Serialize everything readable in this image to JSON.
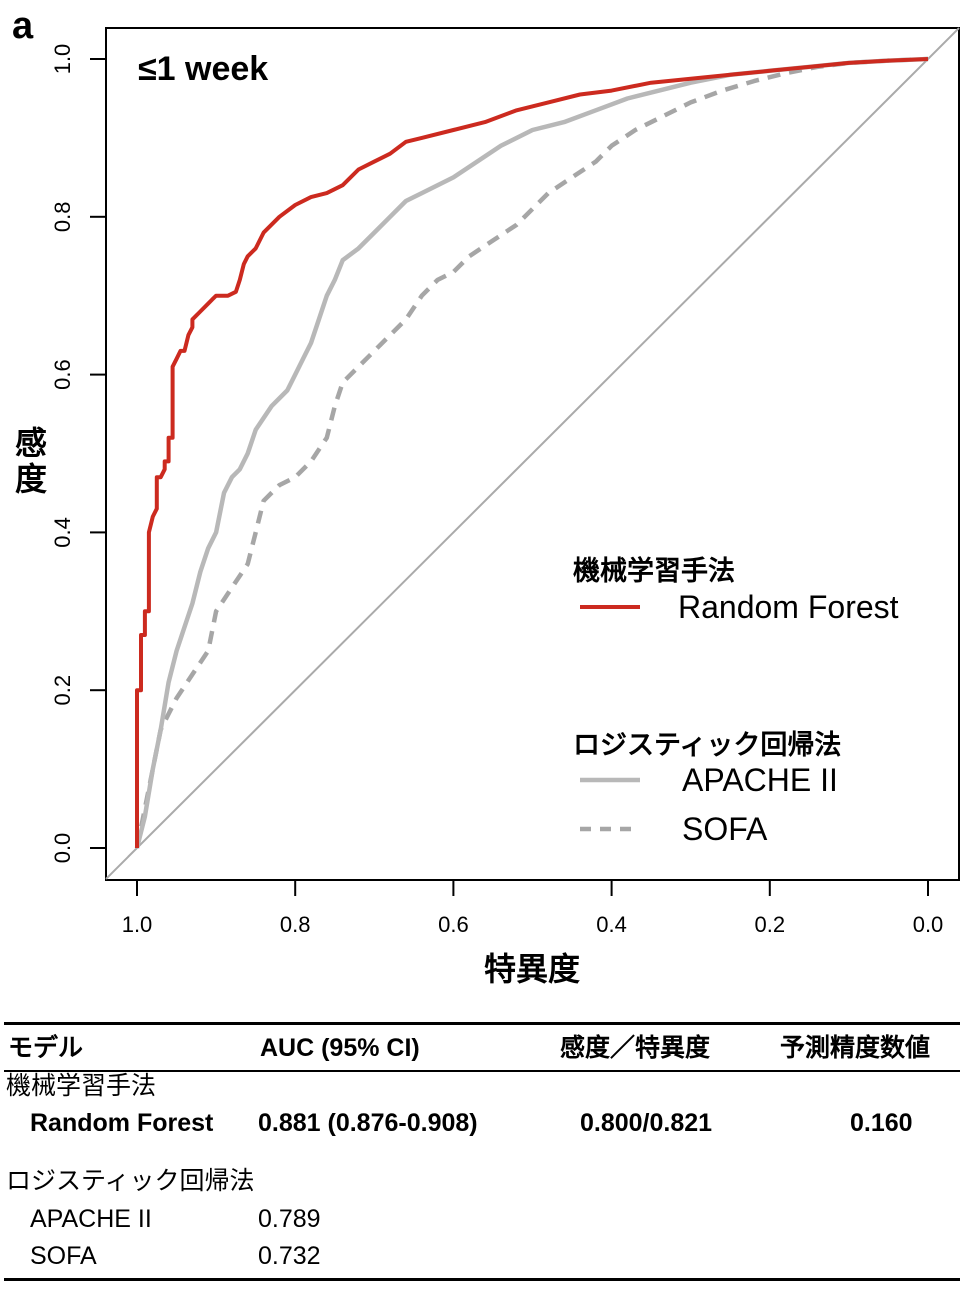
{
  "panel_label": "a",
  "chart_data": {
    "type": "line",
    "title": "≤1 week",
    "xlabel": "特異度",
    "ylabel": "感度",
    "xlim": [
      1.0,
      0.0
    ],
    "ylim": [
      0.0,
      1.0
    ],
    "x_reversed": true,
    "x_ticks": [
      "1.0",
      "0.8",
      "0.6",
      "0.4",
      "0.2",
      "0.0"
    ],
    "y_ticks": [
      "0.0",
      "0.2",
      "0.4",
      "0.6",
      "0.8",
      "1.0"
    ],
    "grid": false,
    "legend_position": "bottom-right",
    "legend_groups": [
      {
        "heading": "機械学習手法",
        "entries": [
          "Random Forest"
        ]
      },
      {
        "heading": "ロジスティック回帰法",
        "entries": [
          "APACHE II",
          "SOFA"
        ]
      }
    ],
    "reference_line": {
      "x": [
        1.0,
        0.0
      ],
      "y": [
        0.0,
        1.0
      ],
      "color": "#aaaaaa"
    },
    "series": [
      {
        "name": "Random Forest",
        "color": "#cc2a1f",
        "style": "solid",
        "x": [
          1.0,
          1.0,
          0.995,
          0.995,
          0.99,
          0.99,
          0.985,
          0.985,
          0.98,
          0.975,
          0.975,
          0.97,
          0.965,
          0.965,
          0.96,
          0.96,
          0.955,
          0.955,
          0.95,
          0.95,
          0.945,
          0.94,
          0.935,
          0.93,
          0.93,
          0.92,
          0.91,
          0.905,
          0.9,
          0.885,
          0.875,
          0.87,
          0.865,
          0.86,
          0.85,
          0.84,
          0.83,
          0.82,
          0.8,
          0.78,
          0.76,
          0.74,
          0.72,
          0.7,
          0.68,
          0.66,
          0.64,
          0.6,
          0.56,
          0.52,
          0.48,
          0.44,
          0.4,
          0.35,
          0.3,
          0.25,
          0.2,
          0.15,
          0.1,
          0.05,
          0.0
        ],
        "y": [
          0.0,
          0.2,
          0.2,
          0.27,
          0.27,
          0.3,
          0.3,
          0.4,
          0.42,
          0.43,
          0.47,
          0.47,
          0.48,
          0.49,
          0.49,
          0.52,
          0.52,
          0.61,
          0.62,
          0.62,
          0.63,
          0.63,
          0.65,
          0.66,
          0.67,
          0.68,
          0.69,
          0.695,
          0.7,
          0.7,
          0.705,
          0.72,
          0.74,
          0.75,
          0.76,
          0.78,
          0.79,
          0.8,
          0.815,
          0.825,
          0.83,
          0.84,
          0.86,
          0.87,
          0.88,
          0.895,
          0.9,
          0.91,
          0.92,
          0.935,
          0.945,
          0.955,
          0.96,
          0.97,
          0.975,
          0.98,
          0.985,
          0.99,
          0.995,
          0.998,
          1.0
        ]
      },
      {
        "name": "APACHE II",
        "color": "#b8b8b8",
        "style": "solid",
        "x": [
          1.0,
          0.99,
          0.98,
          0.97,
          0.96,
          0.95,
          0.94,
          0.93,
          0.92,
          0.91,
          0.9,
          0.89,
          0.88,
          0.87,
          0.86,
          0.85,
          0.83,
          0.81,
          0.8,
          0.79,
          0.78,
          0.77,
          0.76,
          0.75,
          0.74,
          0.72,
          0.7,
          0.68,
          0.66,
          0.64,
          0.62,
          0.6,
          0.57,
          0.54,
          0.5,
          0.46,
          0.42,
          0.38,
          0.34,
          0.3,
          0.25,
          0.2,
          0.15,
          0.1,
          0.05,
          0.0
        ],
        "y": [
          0.0,
          0.04,
          0.1,
          0.15,
          0.21,
          0.25,
          0.28,
          0.31,
          0.35,
          0.38,
          0.4,
          0.45,
          0.47,
          0.48,
          0.5,
          0.53,
          0.56,
          0.58,
          0.6,
          0.62,
          0.64,
          0.67,
          0.7,
          0.72,
          0.745,
          0.76,
          0.78,
          0.8,
          0.82,
          0.83,
          0.84,
          0.85,
          0.87,
          0.89,
          0.91,
          0.92,
          0.935,
          0.95,
          0.96,
          0.97,
          0.98,
          0.985,
          0.99,
          0.995,
          0.998,
          1.0
        ]
      },
      {
        "name": "SOFA",
        "color": "#a6a6a6",
        "style": "dashed",
        "x": [
          1.0,
          0.99,
          0.98,
          0.97,
          0.96,
          0.95,
          0.93,
          0.91,
          0.9,
          0.88,
          0.86,
          0.85,
          0.84,
          0.82,
          0.8,
          0.78,
          0.76,
          0.75,
          0.74,
          0.72,
          0.7,
          0.68,
          0.66,
          0.64,
          0.62,
          0.6,
          0.58,
          0.55,
          0.52,
          0.5,
          0.48,
          0.45,
          0.42,
          0.4,
          0.37,
          0.34,
          0.3,
          0.26,
          0.22,
          0.18,
          0.14,
          0.1,
          0.05,
          0.0
        ],
        "y": [
          0.0,
          0.05,
          0.1,
          0.15,
          0.17,
          0.19,
          0.22,
          0.25,
          0.3,
          0.33,
          0.36,
          0.4,
          0.44,
          0.46,
          0.47,
          0.49,
          0.52,
          0.56,
          0.59,
          0.61,
          0.63,
          0.65,
          0.67,
          0.7,
          0.72,
          0.73,
          0.75,
          0.77,
          0.79,
          0.81,
          0.83,
          0.85,
          0.87,
          0.89,
          0.91,
          0.925,
          0.945,
          0.96,
          0.972,
          0.982,
          0.99,
          0.995,
          0.998,
          1.0
        ]
      }
    ]
  },
  "table": {
    "headers": [
      "モデル",
      "AUC (95% CI)",
      "感度／特異度",
      "予測精度数値"
    ],
    "groups": [
      {
        "label": "機械学習手法",
        "rows": [
          {
            "model": "Random Forest",
            "auc": "0.881 (0.876-0.908)",
            "sens_spec": "0.800/0.821",
            "value": "0.160",
            "bold": true
          }
        ]
      },
      {
        "label": "ロジスティック回帰法",
        "rows": [
          {
            "model": "APACHE II",
            "auc": "0.789",
            "sens_spec": "",
            "value": "",
            "bold": false
          },
          {
            "model": "SOFA",
            "auc": "0.732",
            "sens_spec": "",
            "value": "",
            "bold": false
          }
        ]
      }
    ]
  }
}
